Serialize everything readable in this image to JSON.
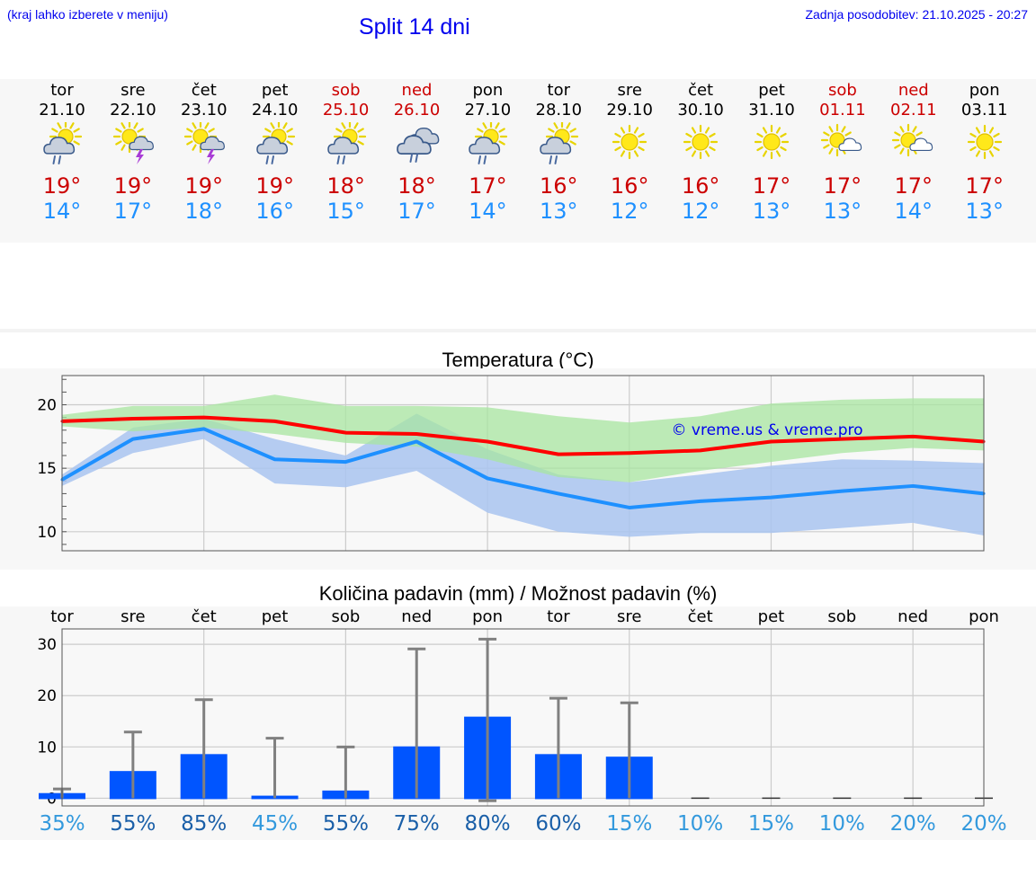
{
  "header": {
    "hint": "(kraj lahko izberete v meniju)",
    "title": "Split 14 dni",
    "updated": "Zadnja posodobitev: 21.10.2025 - 20:27"
  },
  "days": [
    {
      "name": "tor",
      "date": "21.10",
      "weekend": false,
      "icon": "sun-cloud-rain-icon",
      "tmax": "19°",
      "tmin": "14°"
    },
    {
      "name": "sre",
      "date": "22.10",
      "weekend": false,
      "icon": "sun-thunderstorm-icon",
      "tmax": "19°",
      "tmin": "17°"
    },
    {
      "name": "čet",
      "date": "23.10",
      "weekend": false,
      "icon": "sun-thunderstorm-icon",
      "tmax": "19°",
      "tmin": "18°"
    },
    {
      "name": "pet",
      "date": "24.10",
      "weekend": false,
      "icon": "sun-cloud-rain-icon",
      "tmax": "19°",
      "tmin": "16°"
    },
    {
      "name": "sob",
      "date": "25.10",
      "weekend": true,
      "icon": "sun-cloud-rain-icon",
      "tmax": "18°",
      "tmin": "15°"
    },
    {
      "name": "ned",
      "date": "26.10",
      "weekend": true,
      "icon": "cloud-rain-icon",
      "tmax": "18°",
      "tmin": "17°"
    },
    {
      "name": "pon",
      "date": "27.10",
      "weekend": false,
      "icon": "sun-cloud-rain-icon",
      "tmax": "17°",
      "tmin": "14°"
    },
    {
      "name": "tor",
      "date": "28.10",
      "weekend": false,
      "icon": "sun-cloud-rain-icon",
      "tmax": "16°",
      "tmin": "13°"
    },
    {
      "name": "sre",
      "date": "29.10",
      "weekend": false,
      "icon": "sun-icon",
      "tmax": "16°",
      "tmin": "12°"
    },
    {
      "name": "čet",
      "date": "30.10",
      "weekend": false,
      "icon": "sun-icon",
      "tmax": "16°",
      "tmin": "12°"
    },
    {
      "name": "pet",
      "date": "31.10",
      "weekend": false,
      "icon": "sun-icon",
      "tmax": "17°",
      "tmin": "13°"
    },
    {
      "name": "sob",
      "date": "01.11",
      "weekend": true,
      "icon": "sun-small-cloud-icon",
      "tmax": "17°",
      "tmin": "13°"
    },
    {
      "name": "ned",
      "date": "02.11",
      "weekend": true,
      "icon": "sun-small-cloud-icon",
      "tmax": "17°",
      "tmin": "14°"
    },
    {
      "name": "pon",
      "date": "03.11",
      "weekend": false,
      "icon": "sun-icon",
      "tmax": "17°",
      "tmin": "13°"
    }
  ],
  "chart_data": [
    {
      "type": "line",
      "title": "Temperatura (°C)",
      "watermark": "© vreme.us & vreme.pro",
      "x_days": [
        0,
        1,
        2,
        3,
        4,
        5,
        6,
        7,
        8,
        9,
        10,
        11,
        12,
        13
      ],
      "ylim": [
        8.5,
        22.3
      ],
      "yticks": [
        10,
        15,
        20
      ],
      "series": [
        {
          "name": "max",
          "color": "#ff0000",
          "values": [
            18.7,
            18.9,
            19.0,
            18.7,
            17.8,
            17.7,
            17.1,
            16.1,
            16.2,
            16.4,
            17.1,
            17.3,
            17.5,
            17.1
          ]
        },
        {
          "name": "min",
          "color": "#1e90ff",
          "values": [
            14.1,
            17.3,
            18.1,
            15.7,
            15.5,
            17.1,
            14.2,
            13.0,
            11.9,
            12.4,
            12.7,
            13.2,
            13.6,
            13.0
          ]
        },
        {
          "name": "max_range",
          "color": "#a8e6a0",
          "low": [
            18.3,
            17.9,
            18.2,
            17.7,
            17.0,
            16.7,
            15.7,
            14.3,
            13.9,
            14.8,
            15.5,
            16.2,
            16.6,
            16.4
          ],
          "high": [
            19.2,
            19.9,
            19.9,
            20.8,
            19.9,
            19.9,
            19.8,
            19.1,
            18.6,
            19.1,
            20.1,
            20.4,
            20.5,
            20.5
          ]
        },
        {
          "name": "min_range",
          "color": "#a9c4f0",
          "low": [
            13.6,
            16.2,
            17.3,
            13.8,
            13.5,
            14.8,
            11.5,
            10.0,
            9.6,
            9.9,
            9.9,
            10.3,
            10.7,
            9.7
          ],
          "high": [
            14.5,
            18.2,
            18.9,
            17.3,
            16.0,
            19.3,
            16.5,
            14.5,
            13.9,
            14.5,
            15.2,
            15.7,
            15.6,
            15.4
          ]
        }
      ]
    },
    {
      "type": "bar",
      "title": "Količina padavin (mm) / Možnost padavin (%)",
      "categories": [
        "tor",
        "sre",
        "čet",
        "pet",
        "sob",
        "ned",
        "pon",
        "tor",
        "sre",
        "čet",
        "pet",
        "sob",
        "ned",
        "pon"
      ],
      "ylim": [
        -1.5,
        33
      ],
      "yticks": [
        0,
        10,
        20,
        30
      ],
      "values": [
        1.0,
        5.3,
        8.6,
        0.5,
        1.5,
        10.1,
        15.9,
        8.6,
        8.1,
        0,
        0,
        0,
        0,
        0
      ],
      "err_low": [
        0,
        0,
        0,
        0,
        0,
        0,
        -0.5,
        0,
        0,
        0,
        0,
        0,
        0,
        0
      ],
      "err_high": [
        1.8,
        12.9,
        19.2,
        11.7,
        10.0,
        29.1,
        31.0,
        19.5,
        18.6,
        0,
        0,
        0,
        0,
        0
      ],
      "probability": [
        "35%",
        "55%",
        "85%",
        "45%",
        "55%",
        "75%",
        "80%",
        "60%",
        "15%",
        "10%",
        "15%",
        "10%",
        "20%",
        "20%"
      ],
      "probability_colors": [
        "#3399dd",
        "#1a5fa8",
        "#1a5fa8",
        "#3399dd",
        "#1a5fa8",
        "#1a5fa8",
        "#1a5fa8",
        "#1a5fa8",
        "#3399dd",
        "#3399dd",
        "#3399dd",
        "#3399dd",
        "#3399dd",
        "#3399dd"
      ],
      "bar_color": "#0055ff",
      "err_color": "#808080"
    }
  ]
}
